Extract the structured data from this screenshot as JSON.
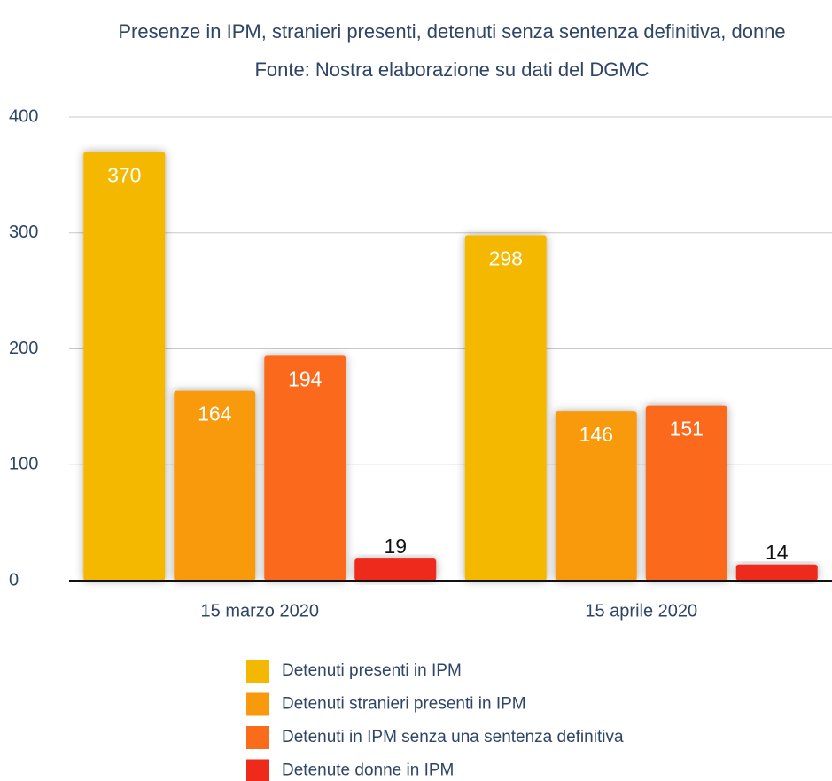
{
  "chart_data": {
    "type": "bar",
    "title": "Presenze in IPM, stranieri presenti, detenuti senza sentenza definitiva, donne",
    "subtitle": "Fonte: Nostra elaborazione su dati del DGMC",
    "categories": [
      "15 marzo 2020",
      "15 aprile 2020"
    ],
    "series": [
      {
        "name": "Detenuti presenti in IPM",
        "color": "#f5b800",
        "values": [
          370,
          298
        ]
      },
      {
        "name": "Detenuti stranieri presenti in IPM",
        "color": "#f99a0a",
        "values": [
          164,
          146
        ]
      },
      {
        "name": "Detenuti in IPM senza una sentenza definitiva",
        "color": "#fb6b1c",
        "values": [
          194,
          151
        ]
      },
      {
        "name": "Detenute donne in IPM",
        "color": "#ee2a1a",
        "values": [
          19,
          14
        ]
      }
    ],
    "ylim": [
      0,
      400
    ],
    "yticks": [
      0,
      100,
      200,
      300,
      400
    ],
    "grid": true
  }
}
